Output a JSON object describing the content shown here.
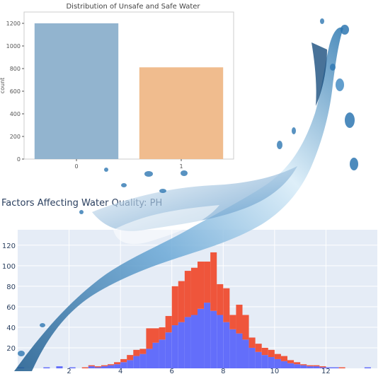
{
  "chart_data": [
    {
      "type": "bar",
      "title": "Distribution of Unsafe and Safe Water",
      "xlabel": "",
      "ylabel": "count",
      "categories": [
        "0",
        "1"
      ],
      "values": [
        1200,
        811
      ],
      "colors": [
        "#92b4cf",
        "#f0bc8e"
      ],
      "ylim": [
        0,
        1300
      ],
      "yticks": [
        0,
        200,
        400,
        600,
        800,
        1000,
        1200
      ],
      "grid": false
    },
    {
      "type": "bar",
      "subtype": "stacked-histogram",
      "title": "Factors Affecting Water Quality: PH",
      "xlabel": "",
      "ylabel": "",
      "x_range": [
        0,
        14
      ],
      "ylim": [
        0,
        135
      ],
      "yticks": [
        20,
        40,
        60,
        80,
        100,
        120
      ],
      "xticks": [
        2,
        4,
        6,
        8,
        10,
        12
      ],
      "bin_width": 0.25,
      "bins_start": [
        0,
        0.25,
        0.5,
        0.75,
        1,
        1.25,
        1.5,
        1.75,
        2,
        2.25,
        2.5,
        2.75,
        3,
        3.25,
        3.5,
        3.75,
        4,
        4.25,
        4.5,
        4.75,
        5,
        5.25,
        5.5,
        5.75,
        6,
        6.25,
        6.5,
        6.75,
        7,
        7.25,
        7.5,
        7.75,
        8,
        8.25,
        8.5,
        8.75,
        9,
        9.25,
        9.5,
        9.75,
        10,
        10.25,
        10.5,
        10.75,
        11,
        11.25,
        11.5,
        11.75,
        12,
        12.25,
        12.5,
        12.75,
        13,
        13.25,
        13.5,
        13.75
      ],
      "series": [
        {
          "color": "#636efa",
          "values": [
            1,
            0,
            0,
            0,
            1,
            0,
            2,
            0,
            1,
            0,
            0,
            2,
            1,
            2,
            3,
            4,
            6,
            8,
            12,
            14,
            19,
            25,
            28,
            35,
            42,
            45,
            50,
            52,
            58,
            64,
            56,
            52,
            45,
            38,
            34,
            28,
            20,
            16,
            13,
            11,
            9,
            7,
            5,
            4,
            3,
            2,
            2,
            1,
            1,
            1,
            0,
            0,
            0,
            0,
            1,
            0
          ]
        },
        {
          "color": "#ef553b",
          "values": [
            0,
            0,
            0,
            0,
            0,
            0,
            0,
            0,
            0,
            0,
            1,
            1,
            1,
            1,
            1,
            2,
            3,
            5,
            6,
            5,
            20,
            14,
            12,
            16,
            38,
            40,
            45,
            46,
            46,
            40,
            57,
            30,
            33,
            14,
            28,
            24,
            10,
            8,
            7,
            7,
            5,
            5,
            3,
            2,
            1,
            1,
            1,
            1,
            0,
            0,
            1,
            0,
            0,
            0,
            0,
            0
          ]
        }
      ]
    }
  ]
}
